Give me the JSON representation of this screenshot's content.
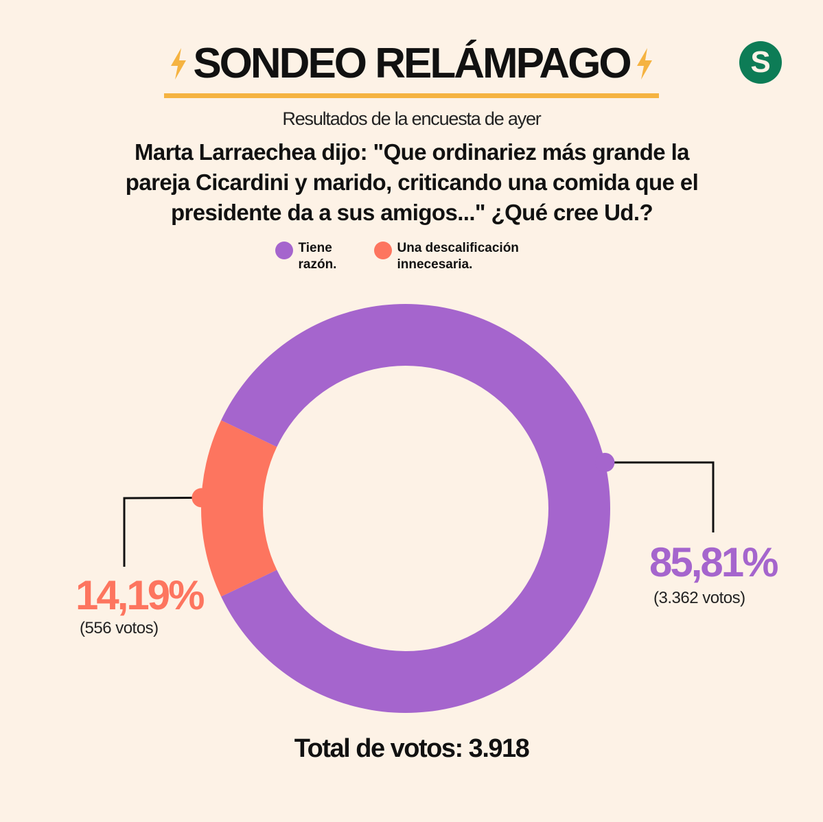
{
  "header": {
    "title": "SONDEO RELÁMPAGO",
    "logo_letter": "S",
    "subtitle": "Resultados de la encuesta de ayer",
    "question": "Marta Larraechea dijo: \"Que ordinariez más grande la pareja Cicardini y marido, criticando una comida que el presidente da a sus amigos...\" ¿Qué cree Ud.?"
  },
  "colors": {
    "background": "#fdf2e6",
    "accent_bolt": "#f5b341",
    "logo": "#0d7c56",
    "series_1": "#a565cd",
    "series_2": "#fd755f"
  },
  "chart_data": {
    "type": "pie",
    "style": "donut",
    "legend_position": "top",
    "series": [
      {
        "name": "Tiene\nrazón.",
        "percent": 85.81,
        "percent_label": "85,81%",
        "votes": 3362,
        "votes_label": "(3.362 votos)",
        "color": "#a565cd"
      },
      {
        "name": "Una descalificación\ninnecesaria.",
        "percent": 14.19,
        "percent_label": "14,19%",
        "votes": 556,
        "votes_label": "(556 votos)",
        "color": "#fd755f"
      }
    ],
    "total_label": "Total de votos: 3.918",
    "total": 3918
  }
}
